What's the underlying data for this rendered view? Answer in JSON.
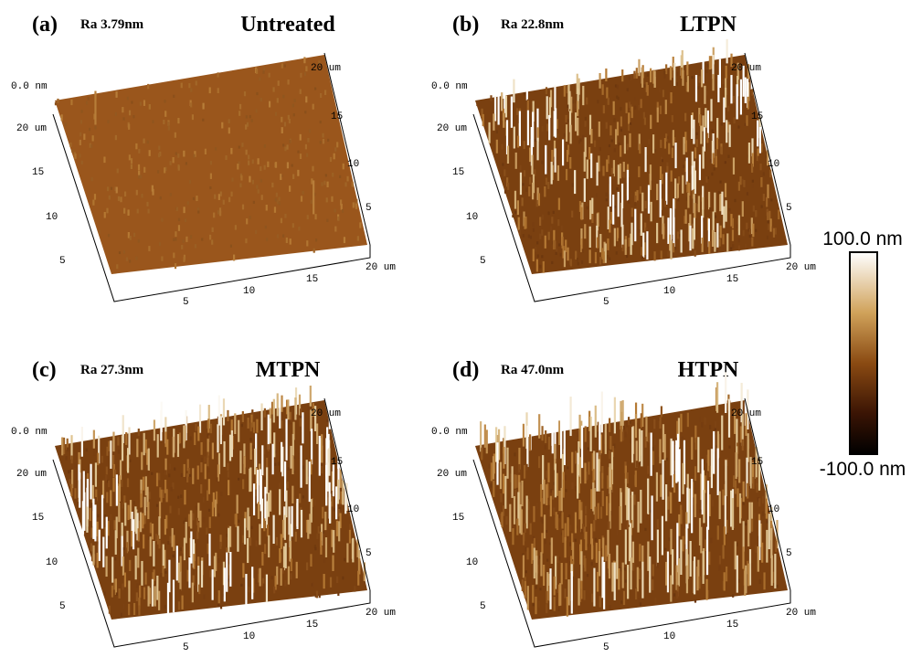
{
  "panels": [
    {
      "label": "(a)",
      "ra": "Ra 3.79nm",
      "title": "Untreated",
      "z_label": "0.0 nm",
      "left_ticks": [
        "20 um",
        "15",
        "10",
        "5"
      ],
      "bottom_ticks": [
        "5",
        "10",
        "15",
        "20 um"
      ],
      "right_ticks": [
        "20 um",
        "15",
        "10",
        "5"
      ]
    },
    {
      "label": "(b)",
      "ra": "Ra 22.8nm",
      "title": "LTPN",
      "z_label": "0.0 nm",
      "left_ticks": [
        "20 um",
        "15",
        "10",
        "5"
      ],
      "bottom_ticks": [
        "5",
        "10",
        "15",
        "20 um"
      ],
      "right_ticks": [
        "20 um",
        "15",
        "10",
        "5"
      ]
    },
    {
      "label": "(c)",
      "ra": "Ra 27.3nm",
      "title": "MTPN",
      "z_label": "0.0 nm",
      "left_ticks": [
        "20 um",
        "15",
        "10",
        "5"
      ],
      "bottom_ticks": [
        "5",
        "10",
        "15",
        "20 um"
      ],
      "right_ticks": [
        "20 um",
        "15",
        "10",
        "5"
      ]
    },
    {
      "label": "(d)",
      "ra": "Ra 47.0nm",
      "title": "HTPN",
      "z_label": "0.0 nm",
      "left_ticks": [
        "20 um",
        "15",
        "10",
        "5"
      ],
      "bottom_ticks": [
        "5",
        "10",
        "15",
        "20 um"
      ],
      "right_ticks": [
        "20 um",
        "15",
        "10",
        "5"
      ]
    }
  ],
  "colorbar": {
    "max": "100.0 nm",
    "min": "-100.0 nm"
  }
}
